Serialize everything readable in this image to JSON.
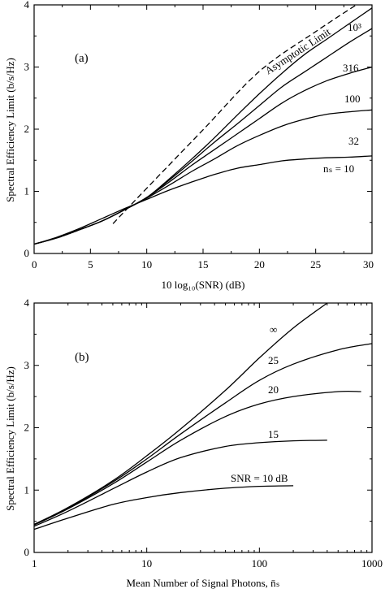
{
  "chart_data": [
    {
      "type": "line",
      "panel_label": "(a)",
      "xlabel": "10 log₁₀(SNR) (dB)",
      "ylabel": "Spectral Efficiency Limit (b/s/Hz)",
      "xlim": [
        0,
        30
      ],
      "ylim": [
        0,
        4
      ],
      "xscale": "linear",
      "x_ticks": [
        "0",
        "5",
        "10",
        "15",
        "20",
        "25",
        "30"
      ],
      "y_ticks": [
        "0",
        "1",
        "2",
        "3",
        "4"
      ],
      "series": [
        {
          "name": "Asymptotic Limit",
          "dashed": true,
          "x": [
            7,
            10,
            15,
            20,
            25,
            28.6
          ],
          "y": [
            0.48,
            1.05,
            1.99,
            2.93,
            3.57,
            4.0
          ]
        },
        {
          "name": "10³",
          "x": [
            0,
            2,
            4,
            6,
            8,
            10,
            12,
            14,
            16,
            18,
            20,
            22,
            24,
            26,
            28,
            30
          ],
          "y": [
            0.15,
            0.25,
            0.38,
            0.52,
            0.7,
            0.9,
            1.2,
            1.52,
            1.86,
            2.22,
            2.57,
            2.9,
            3.2,
            3.45,
            3.7,
            3.95
          ]
        },
        {
          "name": "316",
          "x": [
            0,
            2,
            4,
            6,
            8,
            10,
            12,
            14,
            16,
            18,
            20,
            22,
            24,
            26,
            28,
            30
          ],
          "y": [
            0.15,
            0.25,
            0.38,
            0.52,
            0.7,
            0.9,
            1.18,
            1.48,
            1.79,
            2.08,
            2.38,
            2.68,
            2.92,
            3.16,
            3.4,
            3.62
          ]
        },
        {
          "name": "100",
          "x": [
            0,
            2,
            4,
            6,
            8,
            10,
            12,
            14,
            16,
            18,
            20,
            22,
            24,
            26,
            28,
            30
          ],
          "y": [
            0.15,
            0.25,
            0.38,
            0.52,
            0.7,
            0.9,
            1.15,
            1.42,
            1.67,
            1.92,
            2.17,
            2.42,
            2.62,
            2.78,
            2.9,
            3.0
          ]
        },
        {
          "name": "32",
          "x": [
            0,
            2,
            4,
            6,
            8,
            10,
            12,
            14,
            16,
            18,
            20,
            22,
            24,
            26,
            28,
            30
          ],
          "y": [
            0.15,
            0.25,
            0.38,
            0.52,
            0.7,
            0.89,
            1.1,
            1.32,
            1.52,
            1.73,
            1.9,
            2.05,
            2.16,
            2.24,
            2.28,
            2.31
          ]
        },
        {
          "name": "nₛ = 10",
          "x": [
            0,
            2,
            4,
            6,
            8,
            10,
            12,
            14,
            16,
            18,
            20,
            22,
            24,
            26,
            28,
            30
          ],
          "y": [
            0.15,
            0.26,
            0.4,
            0.56,
            0.72,
            0.87,
            1.02,
            1.15,
            1.27,
            1.37,
            1.43,
            1.49,
            1.52,
            1.54,
            1.55,
            1.57
          ]
        }
      ],
      "curve_labels": [
        "Asymptotic Limit",
        "10³",
        "316",
        "100",
        "32",
        "nₛ = 10"
      ]
    },
    {
      "type": "line",
      "panel_label": "(b)",
      "xlabel": "Mean Number of Signal Photons, n̄ₛ",
      "ylabel": "Spectral Efficiency Limit (b/s/Hz)",
      "xlim": [
        1,
        1000
      ],
      "ylim": [
        0,
        4
      ],
      "xscale": "log",
      "x_ticks": [
        "1",
        "10",
        "100",
        "1000"
      ],
      "y_ticks": [
        "0",
        "1",
        "2",
        "3",
        "4"
      ],
      "series": [
        {
          "name": "∞",
          "x": [
            1,
            2,
            5,
            10,
            20,
            50,
            100,
            200,
            400
          ],
          "y": [
            0.45,
            0.72,
            1.15,
            1.55,
            1.98,
            2.6,
            3.12,
            3.6,
            4.0
          ]
        },
        {
          "name": "25",
          "x": [
            1,
            2,
            5,
            10,
            20,
            50,
            100,
            200,
            500,
            1000
          ],
          "y": [
            0.45,
            0.71,
            1.13,
            1.5,
            1.9,
            2.4,
            2.76,
            3.02,
            3.25,
            3.35
          ]
        },
        {
          "name": "20",
          "x": [
            1,
            2,
            5,
            10,
            20,
            50,
            100,
            200,
            500,
            800
          ],
          "y": [
            0.44,
            0.7,
            1.1,
            1.45,
            1.8,
            2.18,
            2.38,
            2.5,
            2.58,
            2.58
          ]
        },
        {
          "name": "15",
          "x": [
            1,
            2,
            5,
            10,
            20,
            50,
            100,
            200,
            400
          ],
          "y": [
            0.42,
            0.66,
            1.02,
            1.29,
            1.52,
            1.7,
            1.76,
            1.79,
            1.8
          ]
        },
        {
          "name": "SNR = 10 dB",
          "x": [
            1,
            2,
            5,
            10,
            20,
            50,
            100,
            200
          ],
          "y": [
            0.37,
            0.55,
            0.77,
            0.88,
            0.96,
            1.03,
            1.06,
            1.07
          ]
        }
      ],
      "curve_labels": [
        "∞",
        "25",
        "20",
        "15",
        "SNR = 10 dB"
      ]
    }
  ]
}
